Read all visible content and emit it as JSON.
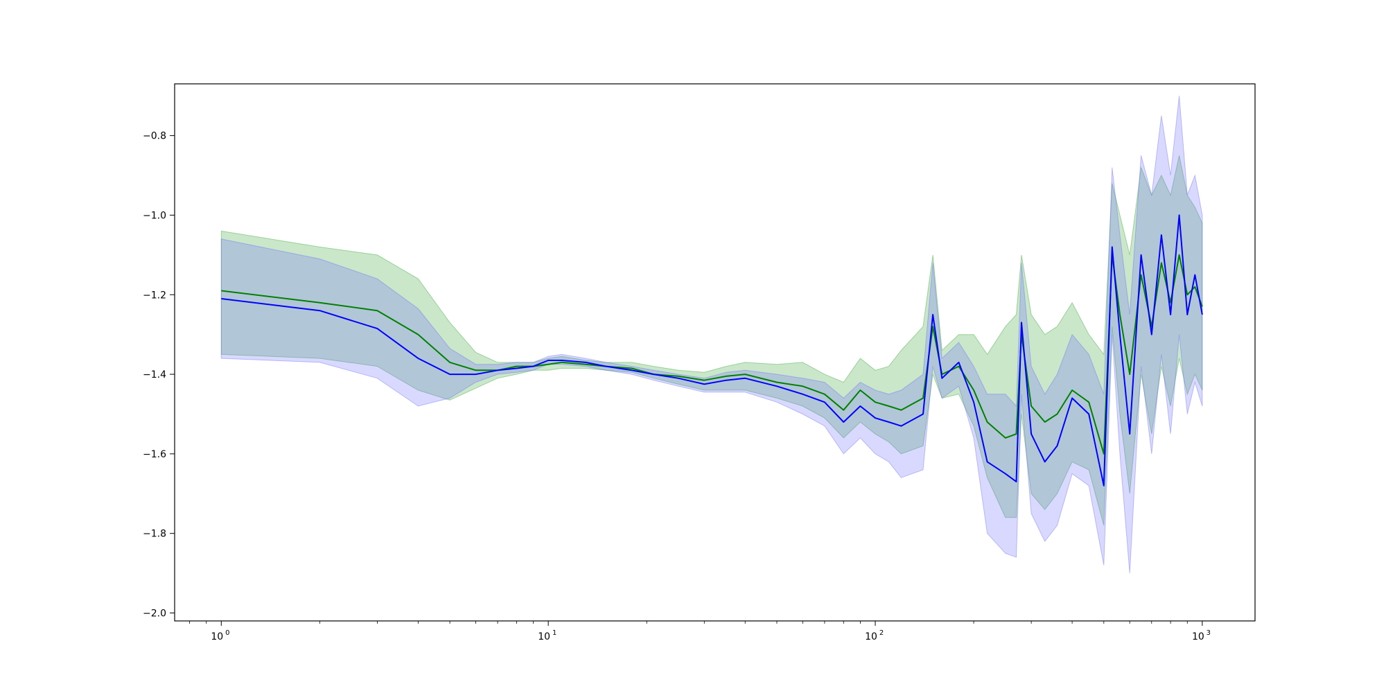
{
  "chart_data": {
    "type": "line",
    "title": "",
    "xlabel": "",
    "ylabel": "",
    "x_scale": "log",
    "xlim": [
      0.72,
      1450
    ],
    "ylim": [
      -2.02,
      -0.67
    ],
    "grid": false,
    "legend": "none",
    "x_ticks": [
      {
        "value": 1,
        "base": "10",
        "exp": "0"
      },
      {
        "value": 10,
        "base": "10",
        "exp": "1"
      },
      {
        "value": 100,
        "base": "10",
        "exp": "2"
      },
      {
        "value": 1000,
        "base": "10",
        "exp": "3"
      }
    ],
    "y_ticks": [
      {
        "value": -0.8,
        "label": "−0.8"
      },
      {
        "value": -1.0,
        "label": "−1.0"
      },
      {
        "value": -1.2,
        "label": "−1.2"
      },
      {
        "value": -1.4,
        "label": "−1.4"
      },
      {
        "value": -1.6,
        "label": "−1.6"
      },
      {
        "value": -1.8,
        "label": "−1.8"
      },
      {
        "value": -2.0,
        "label": "−2.0"
      }
    ],
    "series": [
      {
        "color": "#008000",
        "band_color": "#2ca02c",
        "x": [
          1,
          2,
          3,
          4,
          5,
          6,
          7,
          8,
          9,
          10,
          11,
          13,
          15,
          18,
          21,
          25,
          30,
          35,
          40,
          50,
          60,
          70,
          80,
          90,
          100,
          110,
          120,
          140,
          150,
          160,
          180,
          200,
          220,
          250,
          270,
          280,
          300,
          330,
          360,
          400,
          450,
          500,
          530,
          560,
          600,
          650,
          700,
          750,
          800,
          850,
          900,
          950,
          1000
        ],
        "y": [
          -1.19,
          -1.22,
          -1.24,
          -1.3,
          -1.37,
          -1.39,
          -1.39,
          -1.38,
          -1.38,
          -1.375,
          -1.37,
          -1.375,
          -1.38,
          -1.385,
          -1.4,
          -1.405,
          -1.415,
          -1.405,
          -1.4,
          -1.42,
          -1.43,
          -1.45,
          -1.49,
          -1.44,
          -1.47,
          -1.48,
          -1.49,
          -1.46,
          -1.28,
          -1.4,
          -1.38,
          -1.44,
          -1.52,
          -1.56,
          -1.55,
          -1.3,
          -1.48,
          -1.52,
          -1.5,
          -1.44,
          -1.47,
          -1.6,
          -1.1,
          -1.25,
          -1.4,
          -1.15,
          -1.28,
          -1.12,
          -1.22,
          -1.1,
          -1.2,
          -1.18,
          -1.23
        ],
        "upper": [
          -1.04,
          -1.08,
          -1.1,
          -1.16,
          -1.27,
          -1.345,
          -1.37,
          -1.37,
          -1.37,
          -1.36,
          -1.355,
          -1.365,
          -1.37,
          -1.37,
          -1.38,
          -1.39,
          -1.395,
          -1.38,
          -1.37,
          -1.375,
          -1.37,
          -1.4,
          -1.42,
          -1.36,
          -1.39,
          -1.38,
          -1.34,
          -1.28,
          -1.1,
          -1.34,
          -1.3,
          -1.3,
          -1.35,
          -1.28,
          -1.25,
          -1.1,
          -1.25,
          -1.3,
          -1.28,
          -1.22,
          -1.3,
          -1.35,
          -0.92,
          -1.0,
          -1.1,
          -0.88,
          -0.95,
          -0.9,
          -0.95,
          -0.85,
          -0.95,
          -0.98,
          -1.02
        ],
        "lower": [
          -1.35,
          -1.36,
          -1.38,
          -1.44,
          -1.465,
          -1.435,
          -1.41,
          -1.4,
          -1.39,
          -1.39,
          -1.385,
          -1.385,
          -1.39,
          -1.395,
          -1.41,
          -1.425,
          -1.44,
          -1.44,
          -1.44,
          -1.46,
          -1.48,
          -1.51,
          -1.56,
          -1.52,
          -1.55,
          -1.57,
          -1.6,
          -1.58,
          -1.4,
          -1.46,
          -1.45,
          -1.53,
          -1.66,
          -1.76,
          -1.76,
          -1.5,
          -1.7,
          -1.74,
          -1.7,
          -1.62,
          -1.64,
          -1.78,
          -1.28,
          -1.5,
          -1.7,
          -1.4,
          -1.55,
          -1.38,
          -1.48,
          -1.36,
          -1.45,
          -1.4,
          -1.44
        ]
      },
      {
        "color": "#0000ff",
        "band_color": "#6666ff",
        "x": [
          1,
          2,
          3,
          4,
          5,
          6,
          7,
          8,
          9,
          10,
          11,
          13,
          15,
          18,
          21,
          25,
          30,
          35,
          40,
          50,
          60,
          70,
          80,
          90,
          100,
          110,
          120,
          140,
          150,
          160,
          180,
          200,
          220,
          250,
          270,
          280,
          300,
          330,
          360,
          400,
          450,
          500,
          530,
          560,
          600,
          650,
          700,
          750,
          800,
          850,
          900,
          950,
          1000
        ],
        "y": [
          -1.21,
          -1.24,
          -1.285,
          -1.36,
          -1.4,
          -1.4,
          -1.39,
          -1.385,
          -1.38,
          -1.365,
          -1.365,
          -1.37,
          -1.38,
          -1.39,
          -1.4,
          -1.41,
          -1.425,
          -1.415,
          -1.41,
          -1.43,
          -1.45,
          -1.47,
          -1.52,
          -1.48,
          -1.51,
          -1.52,
          -1.53,
          -1.5,
          -1.25,
          -1.41,
          -1.37,
          -1.47,
          -1.62,
          -1.65,
          -1.67,
          -1.27,
          -1.55,
          -1.62,
          -1.58,
          -1.46,
          -1.5,
          -1.68,
          -1.08,
          -1.3,
          -1.55,
          -1.1,
          -1.3,
          -1.05,
          -1.25,
          -1.0,
          -1.25,
          -1.15,
          -1.25
        ],
        "upper": [
          -1.06,
          -1.11,
          -1.16,
          -1.235,
          -1.335,
          -1.375,
          -1.375,
          -1.37,
          -1.37,
          -1.355,
          -1.35,
          -1.36,
          -1.37,
          -1.38,
          -1.39,
          -1.4,
          -1.41,
          -1.395,
          -1.39,
          -1.4,
          -1.41,
          -1.42,
          -1.46,
          -1.42,
          -1.44,
          -1.45,
          -1.44,
          -1.4,
          -1.12,
          -1.36,
          -1.32,
          -1.38,
          -1.45,
          -1.45,
          -1.48,
          -1.12,
          -1.38,
          -1.45,
          -1.4,
          -1.3,
          -1.35,
          -1.45,
          -0.88,
          -1.05,
          -1.25,
          -0.85,
          -0.95,
          -0.75,
          -0.9,
          -0.7,
          -0.95,
          -0.9,
          -1.0
        ],
        "lower": [
          -1.36,
          -1.37,
          -1.41,
          -1.48,
          -1.46,
          -1.42,
          -1.4,
          -1.395,
          -1.39,
          -1.375,
          -1.375,
          -1.38,
          -1.39,
          -1.4,
          -1.415,
          -1.43,
          -1.445,
          -1.445,
          -1.445,
          -1.47,
          -1.5,
          -1.53,
          -1.6,
          -1.56,
          -1.6,
          -1.62,
          -1.66,
          -1.64,
          -1.38,
          -1.46,
          -1.43,
          -1.56,
          -1.8,
          -1.85,
          -1.86,
          -1.45,
          -1.75,
          -1.82,
          -1.78,
          -1.65,
          -1.68,
          -1.88,
          -1.3,
          -1.6,
          -1.9,
          -1.38,
          -1.6,
          -1.35,
          -1.55,
          -1.3,
          -1.5,
          -1.42,
          -1.48
        ]
      }
    ]
  }
}
